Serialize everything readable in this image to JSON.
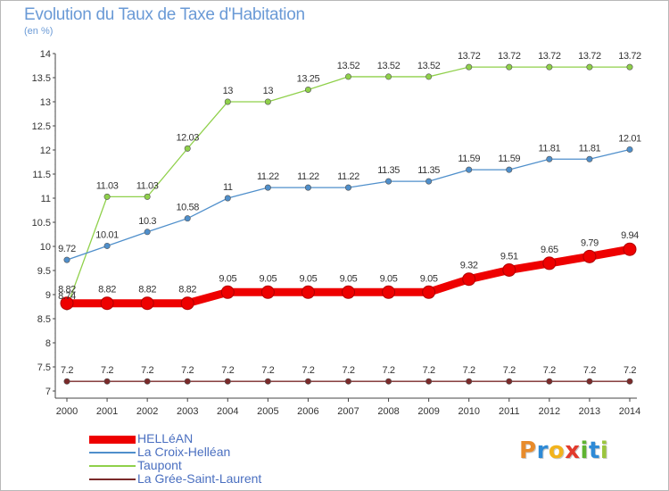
{
  "title": "Evolution du Taux de Taxe d'Habitation",
  "unit": "(en %)",
  "brand": {
    "letters": [
      "P",
      "r",
      "o",
      "x",
      "i",
      "t",
      "i"
    ],
    "colors": [
      "#e88b2b",
      "#2e8ad6",
      "#f2b31c",
      "#e23a2c",
      "#5fb432",
      "#2e8ad6",
      "#9bc53d"
    ]
  },
  "chart_data": {
    "type": "line",
    "x": [
      2000,
      2001,
      2002,
      2003,
      2004,
      2005,
      2006,
      2007,
      2008,
      2009,
      2010,
      2011,
      2012,
      2013,
      2014
    ],
    "ylim": [
      7,
      14
    ],
    "yticks": [
      "7",
      "7.5",
      "8",
      "8.5",
      "9",
      "9.5",
      "10",
      "10.5",
      "11",
      "11.5",
      "12",
      "12.5",
      "13",
      "13.5",
      "14"
    ],
    "grid": false,
    "legend_position": "bottom-left",
    "series": [
      {
        "name": "HELLéAN",
        "color": "#ee0000",
        "values": [
          8.82,
          8.82,
          8.82,
          8.82,
          9.05,
          9.05,
          9.05,
          9.05,
          9.05,
          9.05,
          9.32,
          9.51,
          9.65,
          9.79,
          9.94
        ],
        "labels": [
          "8.82",
          "8.82",
          "8.82",
          "8.82",
          "9.05",
          "9.05",
          "9.05",
          "9.05",
          "9.05",
          "9.05",
          "9.32",
          "9.51",
          "9.65",
          "9.79",
          "9.94"
        ]
      },
      {
        "name": "La Croix-Helléan",
        "color": "#4f8fcb",
        "values": [
          9.72,
          10.01,
          10.3,
          10.58,
          11,
          11.22,
          11.22,
          11.22,
          11.35,
          11.35,
          11.59,
          11.59,
          11.81,
          11.81,
          12.01
        ],
        "labels": [
          "9.72",
          "10.01",
          "10.3",
          "10.58",
          "11",
          "11.22",
          "11.22",
          "11.22",
          "11.35",
          "11.35",
          "11.59",
          "11.59",
          "11.81",
          "11.81",
          "12.01"
        ]
      },
      {
        "name": "Taupont",
        "color": "#8fd04a",
        "values": [
          8.74,
          11.03,
          11.03,
          12.03,
          13,
          13,
          13.25,
          13.52,
          13.52,
          13.52,
          13.72,
          13.72,
          13.72,
          13.72,
          13.72
        ],
        "labels": [
          "8.74",
          "11.03",
          "11.03",
          "12.03",
          "13",
          "13",
          "13.25",
          "13.52",
          "13.52",
          "13.52",
          "13.72",
          "13.72",
          "13.72",
          "13.72",
          "13.72"
        ]
      },
      {
        "name": "La Grée-Saint-Laurent",
        "color": "#7a2a2a",
        "values": [
          7.2,
          7.2,
          7.2,
          7.2,
          7.2,
          7.2,
          7.2,
          7.2,
          7.2,
          7.2,
          7.2,
          7.2,
          7.2,
          7.2,
          7.2
        ],
        "labels": [
          "7.2",
          "7.2",
          "7.2",
          "7.2",
          "7.2",
          "7.2",
          "7.2",
          "7.2",
          "7.2",
          "7.2",
          "7.2",
          "7.2",
          "7.2",
          "7.2",
          "7.2"
        ]
      }
    ]
  }
}
